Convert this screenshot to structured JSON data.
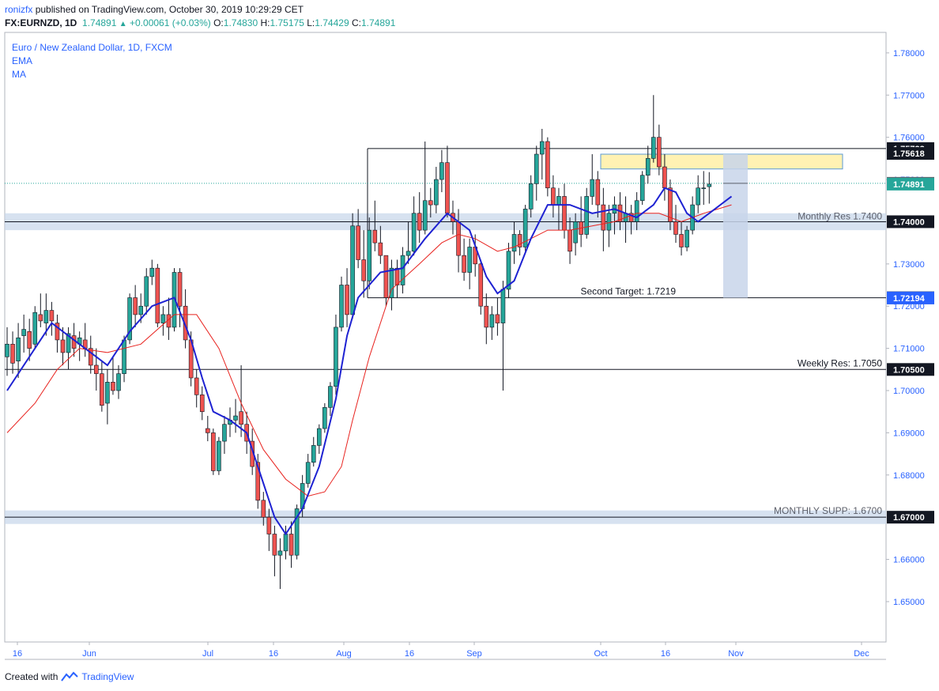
{
  "header": {
    "username": "ronizfx",
    "published_text": "published on TradingView.com, October 30, 2019 10:29:29 CET",
    "symbol": "FX:EURNZD, 1D",
    "last": "1.74891",
    "change": "+0.00061 (+0.03%)",
    "o_label": "O:",
    "o_value": "1.74830",
    "h_label": "H:",
    "h_value": "1.75175",
    "l_label": "L:",
    "l_value": "1.74429",
    "c_label": "C:",
    "c_value": "1.74891"
  },
  "legend": {
    "title": "Euro / New Zealand Dollar, 1D, FXCM",
    "ema": "EMA",
    "ma": "MA"
  },
  "footer": {
    "created_with": "Created with",
    "brand": "TradingView"
  },
  "colors": {
    "up": "#26a69a",
    "down": "#ef5350",
    "ema": "#1e22d2",
    "ma": "#e8231f",
    "zone": "#c6d6ea",
    "target_box": "#fff2b3",
    "projection": "#c8d5ea",
    "label_dark": "#131722",
    "label_last": "#26a69a",
    "label_blue": "#2962ff",
    "label_gray": "#5d606b"
  },
  "chart_data": {
    "type": "candlestick",
    "symbol": "EURNZD",
    "timeframe": "1D",
    "yrange": [
      1.6428,
      1.785
    ],
    "yticks": [
      "1.78000",
      "1.77000",
      "1.76000",
      "1.75000",
      "1.74000",
      "1.73000",
      "1.72000",
      "1.71000",
      "1.70000",
      "1.69000",
      "1.68000",
      "1.67000",
      "1.66000",
      "1.65000"
    ],
    "xlabels": [
      "16",
      "Jun",
      "Jul",
      "16",
      "Aug",
      "16",
      "Sep",
      "Oct",
      "16",
      "Nov",
      "Dec"
    ],
    "candles": [
      [
        1.708,
        1.715,
        1.7035,
        1.711
      ],
      [
        1.711,
        1.714,
        1.704,
        1.7065
      ],
      [
        1.707,
        1.716,
        1.703,
        1.7125
      ],
      [
        1.713,
        1.718,
        1.709,
        1.7145
      ],
      [
        1.714,
        1.717,
        1.707,
        1.71
      ],
      [
        1.711,
        1.72,
        1.71,
        1.7185
      ],
      [
        1.718,
        1.723,
        1.715,
        1.7165
      ],
      [
        1.716,
        1.723,
        1.713,
        1.719
      ],
      [
        1.719,
        1.721,
        1.713,
        1.7165
      ],
      [
        1.716,
        1.718,
        1.709,
        1.712
      ],
      [
        1.712,
        1.715,
        1.706,
        1.709
      ],
      [
        1.709,
        1.715,
        1.705,
        1.7135
      ],
      [
        1.713,
        1.716,
        1.708,
        1.71
      ],
      [
        1.711,
        1.714,
        1.707,
        1.7125
      ],
      [
        1.712,
        1.716,
        1.708,
        1.71
      ],
      [
        1.71,
        1.713,
        1.704,
        1.706
      ],
      [
        1.706,
        1.71,
        1.7,
        1.704
      ],
      [
        1.704,
        1.707,
        1.695,
        1.6965
      ],
      [
        1.697,
        1.705,
        1.692,
        1.702
      ],
      [
        1.702,
        1.708,
        1.699,
        1.7
      ],
      [
        1.7,
        1.706,
        1.698,
        1.704
      ],
      [
        1.704,
        1.713,
        1.702,
        1.712
      ],
      [
        1.712,
        1.723,
        1.711,
        1.722
      ],
      [
        1.722,
        1.725,
        1.715,
        1.718
      ],
      [
        1.718,
        1.723,
        1.716,
        1.72
      ],
      [
        1.72,
        1.729,
        1.718,
        1.727
      ],
      [
        1.727,
        1.731,
        1.725,
        1.729
      ],
      [
        1.729,
        1.73,
        1.715,
        1.716
      ],
      [
        1.716,
        1.72,
        1.713,
        1.718
      ],
      [
        1.718,
        1.722,
        1.712,
        1.715
      ],
      [
        1.715,
        1.729,
        1.714,
        1.728
      ],
      [
        1.728,
        1.729,
        1.715,
        1.72
      ],
      [
        1.72,
        1.724,
        1.71,
        1.712
      ],
      [
        1.712,
        1.714,
        1.701,
        1.703
      ],
      [
        1.703,
        1.705,
        1.696,
        1.699
      ],
      [
        1.699,
        1.701,
        1.693,
        1.695
      ],
      [
        1.691,
        1.694,
        1.688,
        1.69
      ],
      [
        1.69,
        1.691,
        1.68,
        1.681
      ],
      [
        1.681,
        1.689,
        1.68,
        1.688
      ],
      [
        1.688,
        1.694,
        1.685,
        1.692
      ],
      [
        1.692,
        1.696,
        1.689,
        1.693
      ],
      [
        1.693,
        1.698,
        1.69,
        1.694
      ],
      [
        1.695,
        1.706,
        1.689,
        1.692
      ],
      [
        1.692,
        1.695,
        1.685,
        1.688
      ],
      [
        1.688,
        1.691,
        1.68,
        1.682
      ],
      [
        1.683,
        1.685,
        1.672,
        1.674
      ],
      [
        1.674,
        1.676,
        1.668,
        1.67
      ],
      [
        1.67,
        1.672,
        1.662,
        1.666
      ],
      [
        1.666,
        1.668,
        1.656,
        1.661
      ],
      [
        1.661,
        1.665,
        1.653,
        1.662
      ],
      [
        1.662,
        1.668,
        1.66,
        1.666
      ],
      [
        1.666,
        1.669,
        1.658,
        1.661
      ],
      [
        1.661,
        1.673,
        1.66,
        1.672
      ],
      [
        1.672,
        1.68,
        1.67,
        1.678
      ],
      [
        1.678,
        1.685,
        1.677,
        1.683
      ],
      [
        1.683,
        1.689,
        1.682,
        1.687
      ],
      [
        1.687,
        1.692,
        1.685,
        1.691
      ],
      [
        1.691,
        1.697,
        1.69,
        1.696
      ],
      [
        1.696,
        1.702,
        1.694,
        1.701
      ],
      [
        1.701,
        1.718,
        1.699,
        1.715
      ],
      [
        1.715,
        1.727,
        1.714,
        1.725
      ],
      [
        1.725,
        1.729,
        1.715,
        1.718
      ],
      [
        1.718,
        1.742,
        1.717,
        1.739
      ],
      [
        1.739,
        1.743,
        1.729,
        1.731
      ],
      [
        1.731,
        1.738,
        1.722,
        1.726
      ],
      [
        1.726,
        1.741,
        1.724,
        1.738
      ],
      [
        1.738,
        1.745,
        1.733,
        1.735
      ],
      [
        1.735,
        1.739,
        1.73,
        1.732
      ],
      [
        1.732,
        1.732,
        1.72,
        1.722
      ],
      [
        1.722,
        1.731,
        1.719,
        1.729
      ],
      [
        1.729,
        1.731,
        1.722,
        1.725
      ],
      [
        1.725,
        1.734,
        1.723,
        1.732
      ],
      [
        1.732,
        1.74,
        1.73,
        1.733
      ],
      [
        1.733,
        1.746,
        1.732,
        1.742
      ],
      [
        1.742,
        1.747,
        1.735,
        1.738
      ],
      [
        1.738,
        1.759,
        1.737,
        1.745
      ],
      [
        1.745,
        1.748,
        1.741,
        1.744
      ],
      [
        1.744,
        1.753,
        1.742,
        1.75
      ],
      [
        1.75,
        1.757,
        1.747,
        1.754
      ],
      [
        1.754,
        1.758,
        1.741,
        1.742
      ],
      [
        1.742,
        1.745,
        1.737,
        1.74
      ],
      [
        1.74,
        1.743,
        1.728,
        1.732
      ],
      [
        1.732,
        1.736,
        1.726,
        1.728
      ],
      [
        1.728,
        1.736,
        1.724,
        1.734
      ],
      [
        1.734,
        1.737,
        1.727,
        1.73
      ],
      [
        1.73,
        1.731,
        1.718,
        1.72
      ],
      [
        1.72,
        1.723,
        1.711,
        1.715
      ],
      [
        1.715,
        1.72,
        1.712,
        1.718
      ],
      [
        1.718,
        1.722,
        1.713,
        1.716
      ],
      [
        1.716,
        1.726,
        1.7,
        1.724
      ],
      [
        1.724,
        1.735,
        1.722,
        1.733
      ],
      [
        1.733,
        1.74,
        1.73,
        1.737
      ],
      [
        1.737,
        1.738,
        1.732,
        1.734
      ],
      [
        1.734,
        1.744,
        1.733,
        1.743
      ],
      [
        1.743,
        1.751,
        1.741,
        1.749
      ],
      [
        1.749,
        1.758,
        1.745,
        1.756
      ],
      [
        1.756,
        1.762,
        1.75,
        1.759
      ],
      [
        1.759,
        1.76,
        1.746,
        1.748
      ],
      [
        1.748,
        1.751,
        1.741,
        1.744
      ],
      [
        1.744,
        1.748,
        1.738,
        1.746
      ],
      [
        1.746,
        1.749,
        1.736,
        1.738
      ],
      [
        1.738,
        1.741,
        1.73,
        1.733
      ],
      [
        1.735,
        1.742,
        1.732,
        1.74
      ],
      [
        1.74,
        1.746,
        1.734,
        1.737
      ],
      [
        1.737,
        1.748,
        1.736,
        1.746
      ],
      [
        1.746,
        1.756,
        1.744,
        1.75
      ],
      [
        1.75,
        1.752,
        1.741,
        1.744
      ],
      [
        1.744,
        1.748,
        1.733,
        1.738
      ],
      [
        1.738,
        1.744,
        1.734,
        1.742
      ],
      [
        1.742,
        1.746,
        1.737,
        1.744
      ],
      [
        1.744,
        1.747,
        1.738,
        1.74
      ],
      [
        1.74,
        1.746,
        1.735,
        1.742
      ],
      [
        1.742,
        1.744,
        1.737,
        1.74
      ],
      [
        1.74,
        1.747,
        1.738,
        1.745
      ],
      [
        1.745,
        1.752,
        1.744,
        1.751
      ],
      [
        1.751,
        1.758,
        1.749,
        1.755
      ],
      [
        1.755,
        1.77,
        1.754,
        1.76
      ],
      [
        1.76,
        1.763,
        1.751,
        1.753
      ],
      [
        1.753,
        1.756,
        1.745,
        1.748
      ],
      [
        1.748,
        1.75,
        1.738,
        1.74
      ],
      [
        1.74,
        1.744,
        1.735,
        1.737
      ],
      [
        1.737,
        1.74,
        1.732,
        1.734
      ],
      [
        1.734,
        1.739,
        1.733,
        1.738
      ],
      [
        1.738,
        1.746,
        1.737,
        1.744
      ],
      [
        1.744,
        1.751,
        1.742,
        1.748
      ],
      [
        1.748,
        1.752,
        1.744,
        1.748
      ],
      [
        1.7483,
        1.75175,
        1.74429,
        1.74891
      ]
    ],
    "ema": [
      [
        0,
        1.7
      ],
      [
        8,
        1.716
      ],
      [
        13,
        1.711
      ],
      [
        18,
        1.706
      ],
      [
        22,
        1.714
      ],
      [
        26,
        1.72
      ],
      [
        30,
        1.722
      ],
      [
        33,
        1.712
      ],
      [
        35,
        1.703
      ],
      [
        37,
        1.695
      ],
      [
        40,
        1.693
      ],
      [
        43,
        1.69
      ],
      [
        46,
        1.678
      ],
      [
        48,
        1.67
      ],
      [
        50,
        1.666
      ],
      [
        53,
        1.672
      ],
      [
        56,
        1.682
      ],
      [
        59,
        1.698
      ],
      [
        61,
        1.713
      ],
      [
        63,
        1.722
      ],
      [
        67,
        1.728
      ],
      [
        71,
        1.729
      ],
      [
        75,
        1.736
      ],
      [
        79,
        1.742
      ],
      [
        83,
        1.738
      ],
      [
        86,
        1.727
      ],
      [
        88,
        1.723
      ],
      [
        91,
        1.726
      ],
      [
        94,
        1.736
      ],
      [
        97,
        1.744
      ],
      [
        101,
        1.744
      ],
      [
        105,
        1.742
      ],
      [
        109,
        1.743
      ],
      [
        113,
        1.741
      ],
      [
        116,
        1.744
      ],
      [
        118,
        1.748
      ],
      [
        120,
        1.747
      ],
      [
        122,
        1.742
      ],
      [
        124,
        1.74
      ],
      [
        127,
        1.743
      ],
      [
        130,
        1.746
      ]
    ],
    "ma": [
      [
        0,
        1.69
      ],
      [
        5,
        1.697
      ],
      [
        9,
        1.705
      ],
      [
        13,
        1.71
      ],
      [
        18,
        1.709
      ],
      [
        24,
        1.711
      ],
      [
        30,
        1.718
      ],
      [
        34,
        1.718
      ],
      [
        38,
        1.71
      ],
      [
        42,
        1.697
      ],
      [
        46,
        1.686
      ],
      [
        50,
        1.679
      ],
      [
        54,
        1.675
      ],
      [
        57,
        1.676
      ],
      [
        60,
        1.682
      ],
      [
        62,
        1.693
      ],
      [
        65,
        1.708
      ],
      [
        69,
        1.724
      ],
      [
        74,
        1.73
      ],
      [
        78,
        1.735
      ],
      [
        81,
        1.737
      ],
      [
        84,
        1.736
      ],
      [
        88,
        1.733
      ],
      [
        91,
        1.734
      ],
      [
        94,
        1.736
      ],
      [
        97,
        1.738
      ],
      [
        101,
        1.738
      ],
      [
        105,
        1.739
      ],
      [
        109,
        1.74
      ],
      [
        113,
        1.742
      ],
      [
        117,
        1.742
      ],
      [
        121,
        1.74
      ],
      [
        125,
        1.742
      ],
      [
        130,
        1.744
      ]
    ],
    "levels": [
      {
        "name": "Monthly Res 1.7400",
        "value": 1.74
      },
      {
        "name": "Second Target: 1.7219",
        "value": 1.72198
      },
      {
        "name": "Weekly Res: 1.7050",
        "value": 1.705
      },
      {
        "name": "MONTHLY SUPP: 1.6700",
        "value": 1.67
      }
    ],
    "price_labels": [
      {
        "text": "1.75733",
        "value": 1.75733,
        "color": "label_dark"
      },
      {
        "text": "1.75618",
        "value": 1.75618,
        "color": "label_dark"
      },
      {
        "text": "1.74910",
        "value": 1.7491,
        "color": "label_gray"
      },
      {
        "text": "1.74891",
        "value": 1.74891,
        "color": "label_last"
      },
      {
        "text": "1.74000",
        "value": 1.74,
        "color": "label_dark"
      },
      {
        "text": "1.72198",
        "value": 1.72198,
        "color": "label_dark"
      },
      {
        "text": "1.72194",
        "value": 1.72194,
        "color": "label_blue"
      },
      {
        "text": "1.70500",
        "value": 1.705,
        "color": "label_dark"
      },
      {
        "text": "1.67000",
        "value": 1.67,
        "color": "label_dark"
      }
    ],
    "target_zone": [
      1.7525,
      1.756
    ],
    "range_box": [
      1.72198,
      1.75733
    ]
  }
}
